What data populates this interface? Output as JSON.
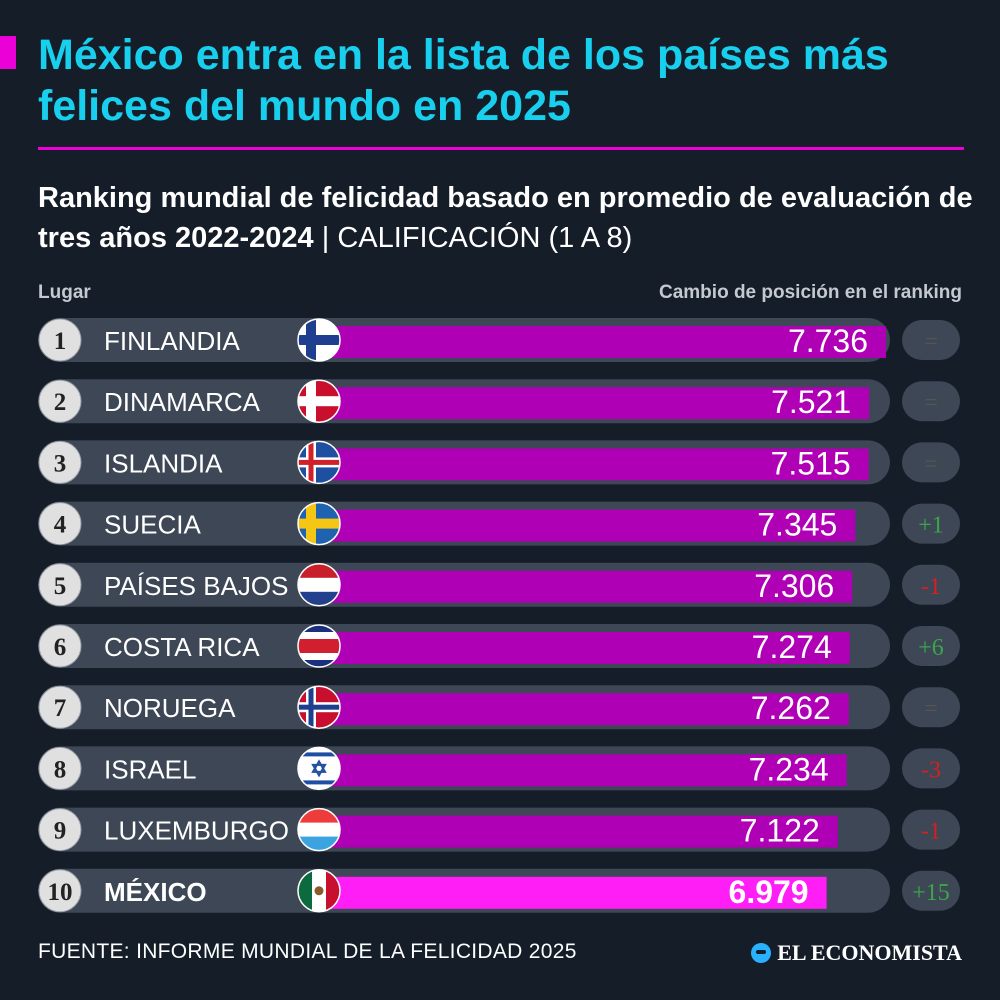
{
  "title": "México entra en la lista de los países más felices del mundo en 2025",
  "subtitle": "Ranking mundial de felicidad basado en promedio de evaluación de tres años 2022-2024",
  "subtitle_unit": "CALIFICACIÓN (1 A 8)",
  "subtitle_separator": "|",
  "col_left_label": "Lugar",
  "col_right_label": "Cambio de posición en el ranking",
  "source": "FUENTE: INFORME MUNDIAL DE LA FELICIDAD 2025",
  "brand": "EL ECONOMISTA",
  "colors": {
    "bar": "#b000b5",
    "highlight_bar": "#ff1ef6",
    "track": "#3e4755",
    "badge": "#e0e0e0",
    "title": "#19cfee",
    "accent": "#ec00d8",
    "positive": "#3aa54a",
    "negative": "#d42020",
    "neutral": "#555555"
  },
  "chart_data": {
    "type": "bar",
    "orientation": "horizontal",
    "title": "Ranking mundial de felicidad basado en promedio de evaluación de tres años 2022-2024",
    "xlabel": "CALIFICACIÓN (1 A 8)",
    "xlim": [
      0,
      8
    ],
    "ranks": [
      "1",
      "2",
      "3",
      "4",
      "5",
      "6",
      "7",
      "8",
      "9",
      "10"
    ],
    "categories": [
      "FINLANDIA",
      "DINAMARCA",
      "ISLANDIA",
      "SUECIA",
      "PAÍSES BAJOS",
      "COSTA RICA",
      "NORUEGA",
      "ISRAEL",
      "LUXEMBURGO",
      "MÉXICO"
    ],
    "values": [
      7.736,
      7.521,
      7.515,
      7.345,
      7.306,
      7.274,
      7.262,
      7.234,
      7.122,
      6.979
    ],
    "value_labels": [
      "7.736",
      "7.521",
      "7.515",
      "7.345",
      "7.306",
      "7.274",
      "7.262",
      "7.234",
      "7.122",
      "6.979"
    ],
    "changes": [
      "=",
      "=",
      "=",
      "+1",
      "-1",
      "+6",
      "=",
      "-3",
      "-1",
      "+15"
    ],
    "highlight": "MÉXICO"
  }
}
